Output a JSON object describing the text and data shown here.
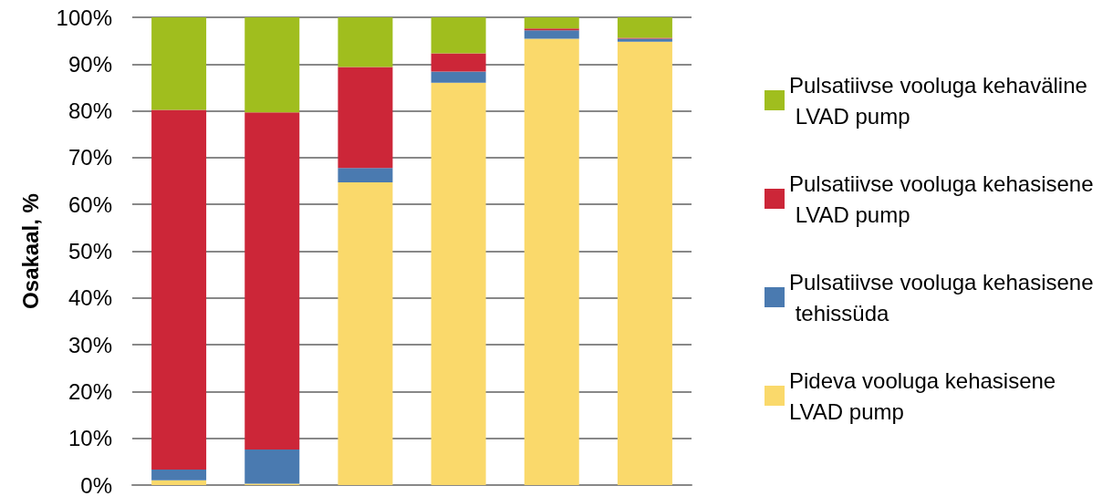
{
  "chart_data": {
    "type": "bar",
    "stacked": true,
    "ylabel": "Osakaal, %",
    "categories": [
      null,
      null,
      null,
      null,
      null,
      null
    ],
    "series": [
      {
        "name": "Pideva vooluga kehasisene LVAD pump",
        "color": "#fad96b",
        "values": [
          1.0,
          0.3,
          64.7,
          86.0,
          95.4,
          94.8
        ]
      },
      {
        "name": "Pulsatiivse vooluga kehasisene tehissüda",
        "color": "#4a7ab0",
        "values": [
          2.3,
          7.3,
          3.1,
          2.4,
          1.8,
          0.6
        ]
      },
      {
        "name": "Pulsatiivse vooluga kehasisene LVAD pump",
        "color": "#cc2638",
        "values": [
          76.9,
          72.1,
          21.6,
          3.9,
          0.4,
          0.2
        ]
      },
      {
        "name": "Pulsatiivse vooluga kehaväline LVAD pump",
        "color": "#a0be1e",
        "values": [
          19.8,
          20.3,
          10.6,
          7.7,
          2.4,
          4.4
        ]
      }
    ],
    "ylim": [
      0,
      100
    ],
    "yticks": [
      {
        "value": 0,
        "label": "0%"
      },
      {
        "value": 10,
        "label": "10%"
      },
      {
        "value": 20,
        "label": "20%"
      },
      {
        "value": 30,
        "label": "30%"
      },
      {
        "value": 40,
        "label": "40%"
      },
      {
        "value": 50,
        "label": "50%"
      },
      {
        "value": 60,
        "label": "60%"
      },
      {
        "value": 70,
        "label": "70%"
      },
      {
        "value": 80,
        "label": "80%"
      },
      {
        "value": 90,
        "label": "90%"
      },
      {
        "value": 100,
        "label": "100%"
      }
    ],
    "grid": "y",
    "legend": "right"
  }
}
